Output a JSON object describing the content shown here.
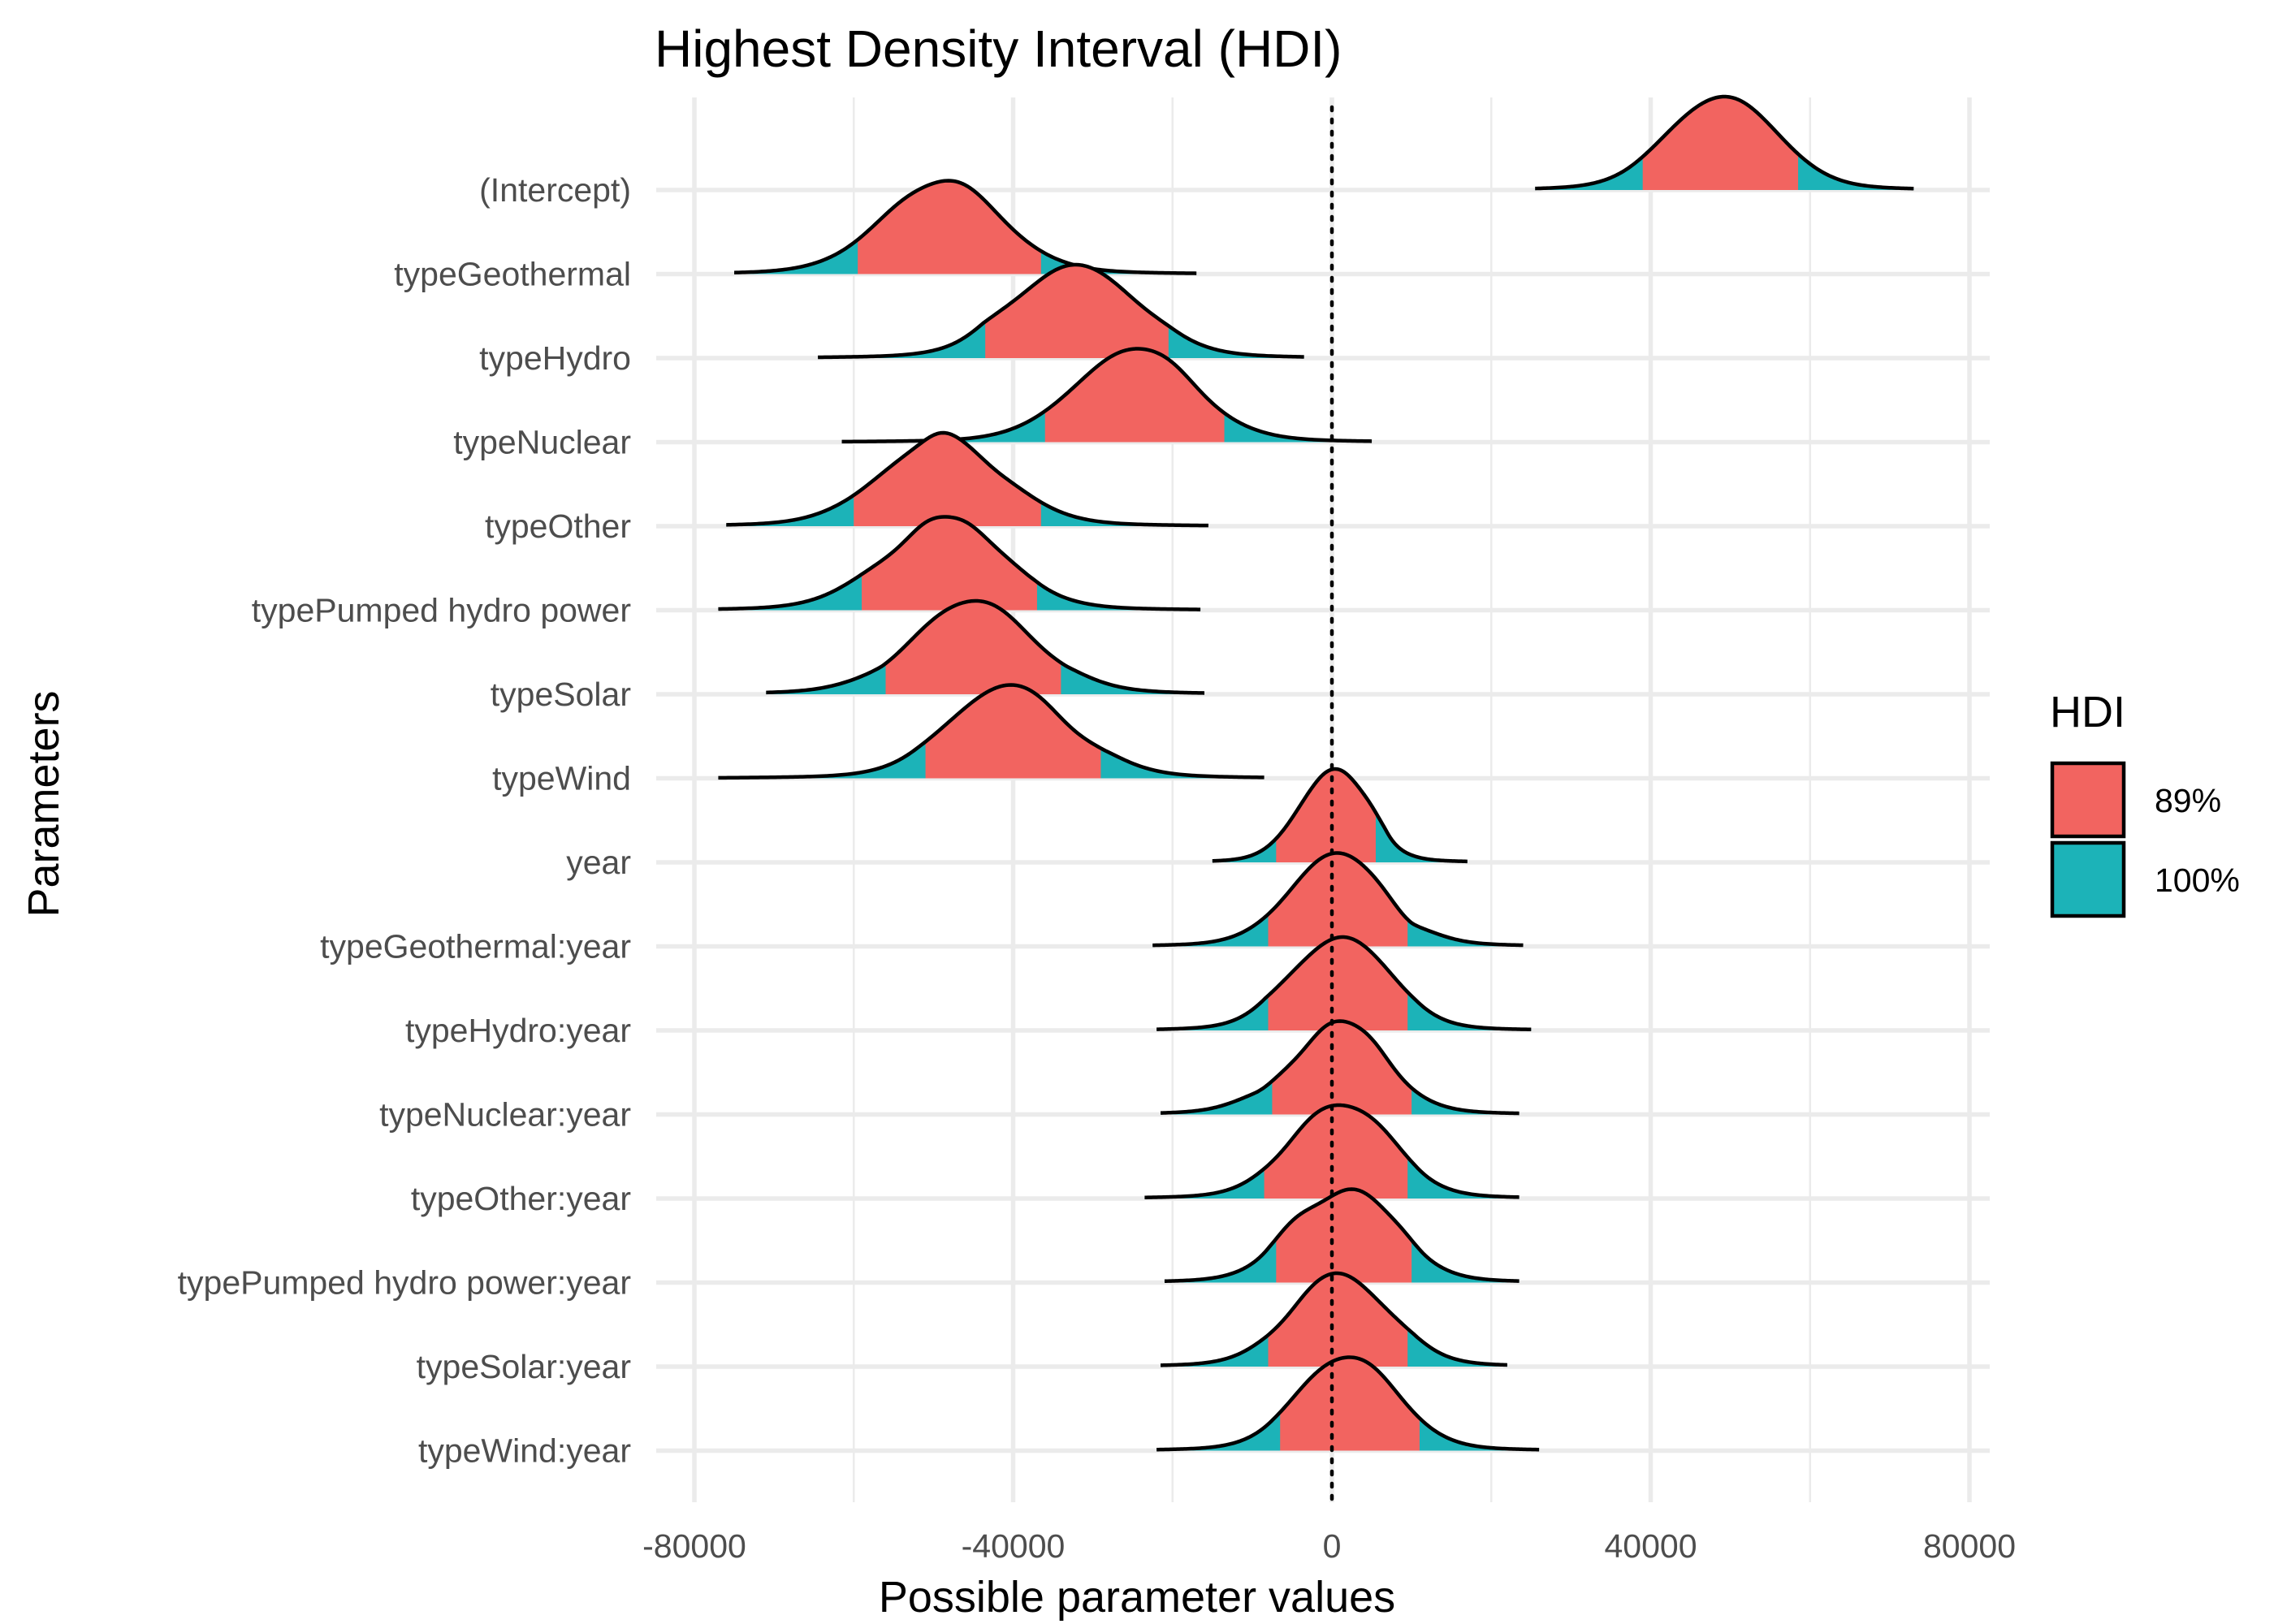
{
  "chart_data": {
    "type": "ridgeline-density",
    "title": "Highest Density Interval (HDI)",
    "xlabel": "Possible parameter values",
    "ylabel": "Parameters",
    "xlim": [
      -80000,
      80000
    ],
    "x_ticks": [
      -80000,
      -40000,
      0,
      40000,
      80000
    ],
    "x_tick_labels": [
      "-80000",
      "-40000",
      "0",
      "40000",
      "80000"
    ],
    "reference_line_x": 0,
    "grid": true,
    "legend": {
      "title": "HDI",
      "position": "right",
      "entries": [
        {
          "label": "89%",
          "color": "#F8766D"
        },
        {
          "label": "100%",
          "color": "#00BFC4"
        }
      ]
    },
    "colors": {
      "hdi_89": "#F26460",
      "hdi_100": "#1CB3B8"
    },
    "parameters": [
      {
        "name": "(Intercept)",
        "min": 25500,
        "max": 73000,
        "hdi89": [
          39000,
          58500
        ],
        "mode": 49000,
        "sd": 6500
      },
      {
        "name": "typeGeothermal",
        "min": -75000,
        "max": -17000,
        "hdi89": [
          -59500,
          -36500
        ],
        "mode": -49000,
        "sd": 7500
      },
      {
        "name": "typeHydro",
        "min": -64500,
        "max": -3500,
        "hdi89": [
          -43500,
          -20500
        ],
        "mode": -32000,
        "sd": 7500
      },
      {
        "name": "typeNuclear",
        "min": -61500,
        "max": 5000,
        "hdi89": [
          -36000,
          -13500
        ],
        "mode": -25000,
        "sd": 7500
      },
      {
        "name": "typeOther",
        "min": -76000,
        "max": -15500,
        "hdi89": [
          -60000,
          -36500
        ],
        "mode": -49000,
        "sd": 7500
      },
      {
        "name": "typePumped hydro power",
        "min": -77000,
        "max": -16500,
        "hdi89": [
          -59000,
          -37000
        ],
        "mode": -49000,
        "sd": 7500
      },
      {
        "name": "typeSolar",
        "min": -71000,
        "max": -16000,
        "hdi89": [
          -56000,
          -34000
        ],
        "mode": -45000,
        "sd": 7500
      },
      {
        "name": "typeWind",
        "min": -77000,
        "max": -8500,
        "hdi89": [
          -51000,
          -29000
        ],
        "mode": -40000,
        "sd": 7500
      },
      {
        "name": "year",
        "min": -15000,
        "max": 17000,
        "hdi89": [
          -7000,
          5500
        ],
        "mode": 0,
        "sd": 4200
      },
      {
        "name": "typeGeothermal:year",
        "min": -22500,
        "max": 24000,
        "hdi89": [
          -8000,
          9500
        ],
        "mode": 1000,
        "sd": 6000
      },
      {
        "name": "typeHydro:year",
        "min": -22000,
        "max": 25000,
        "hdi89": [
          -8000,
          9500
        ],
        "mode": 1000,
        "sd": 6000
      },
      {
        "name": "typeNuclear:year",
        "min": -21500,
        "max": 23500,
        "hdi89": [
          -7500,
          10000
        ],
        "mode": 0,
        "sd": 6000
      },
      {
        "name": "typeOther:year",
        "min": -23500,
        "max": 23500,
        "hdi89": [
          -8500,
          9500
        ],
        "mode": 1000,
        "sd": 6000
      },
      {
        "name": "typePumped hydro power:year",
        "min": -21000,
        "max": 23500,
        "hdi89": [
          -7000,
          10000
        ],
        "mode": 1500,
        "sd": 6000
      },
      {
        "name": "typeSolar:year",
        "min": -21500,
        "max": 22000,
        "hdi89": [
          -8000,
          9500
        ],
        "mode": 1000,
        "sd": 6000
      },
      {
        "name": "typeWind:year",
        "min": -22000,
        "max": 26000,
        "hdi89": [
          -6500,
          11000
        ],
        "mode": 2000,
        "sd": 6000
      }
    ]
  }
}
